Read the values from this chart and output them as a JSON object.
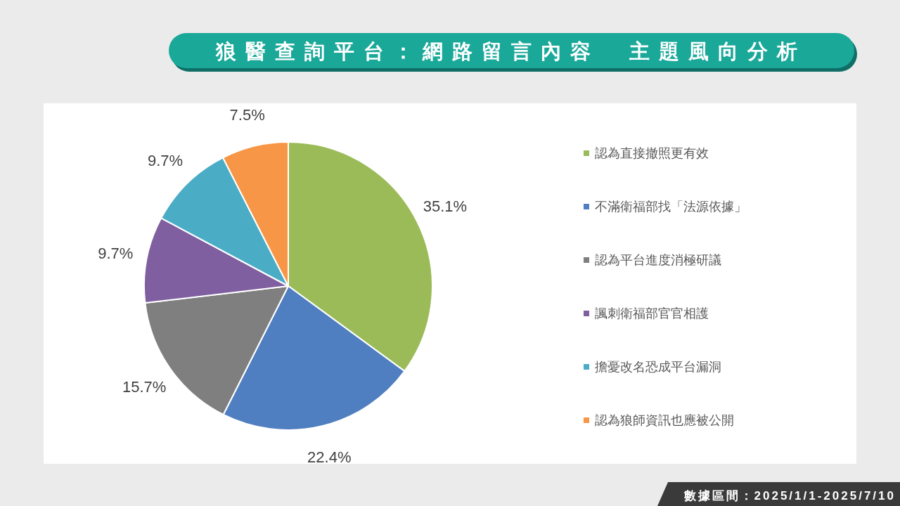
{
  "chart_data": {
    "type": "pie",
    "title": "狼醫查詢平台：網路留言內容　主題風向分析",
    "categories": [
      "認為直接撤照更有效",
      "不滿衛福部找「法源依據」",
      "認為平台進度消極研議",
      "諷刺衛福部官官相護",
      "擔憂改名恐成平台漏洞",
      "認為狼師資訊也應被公開"
    ],
    "values": [
      35.1,
      22.4,
      15.7,
      9.7,
      9.7,
      7.5
    ],
    "colors": [
      "#9bbb59",
      "#4f7fc0",
      "#7f7f7f",
      "#7f5fa0",
      "#4bacc6",
      "#f79646"
    ],
    "value_labels": [
      "35.1%",
      "22.4%",
      "15.7%",
      "9.7%",
      "9.7%",
      "7.5%"
    ],
    "legend": "right",
    "annotations": [
      "數據區間：2025/1/1-2025/7/10"
    ]
  }
}
